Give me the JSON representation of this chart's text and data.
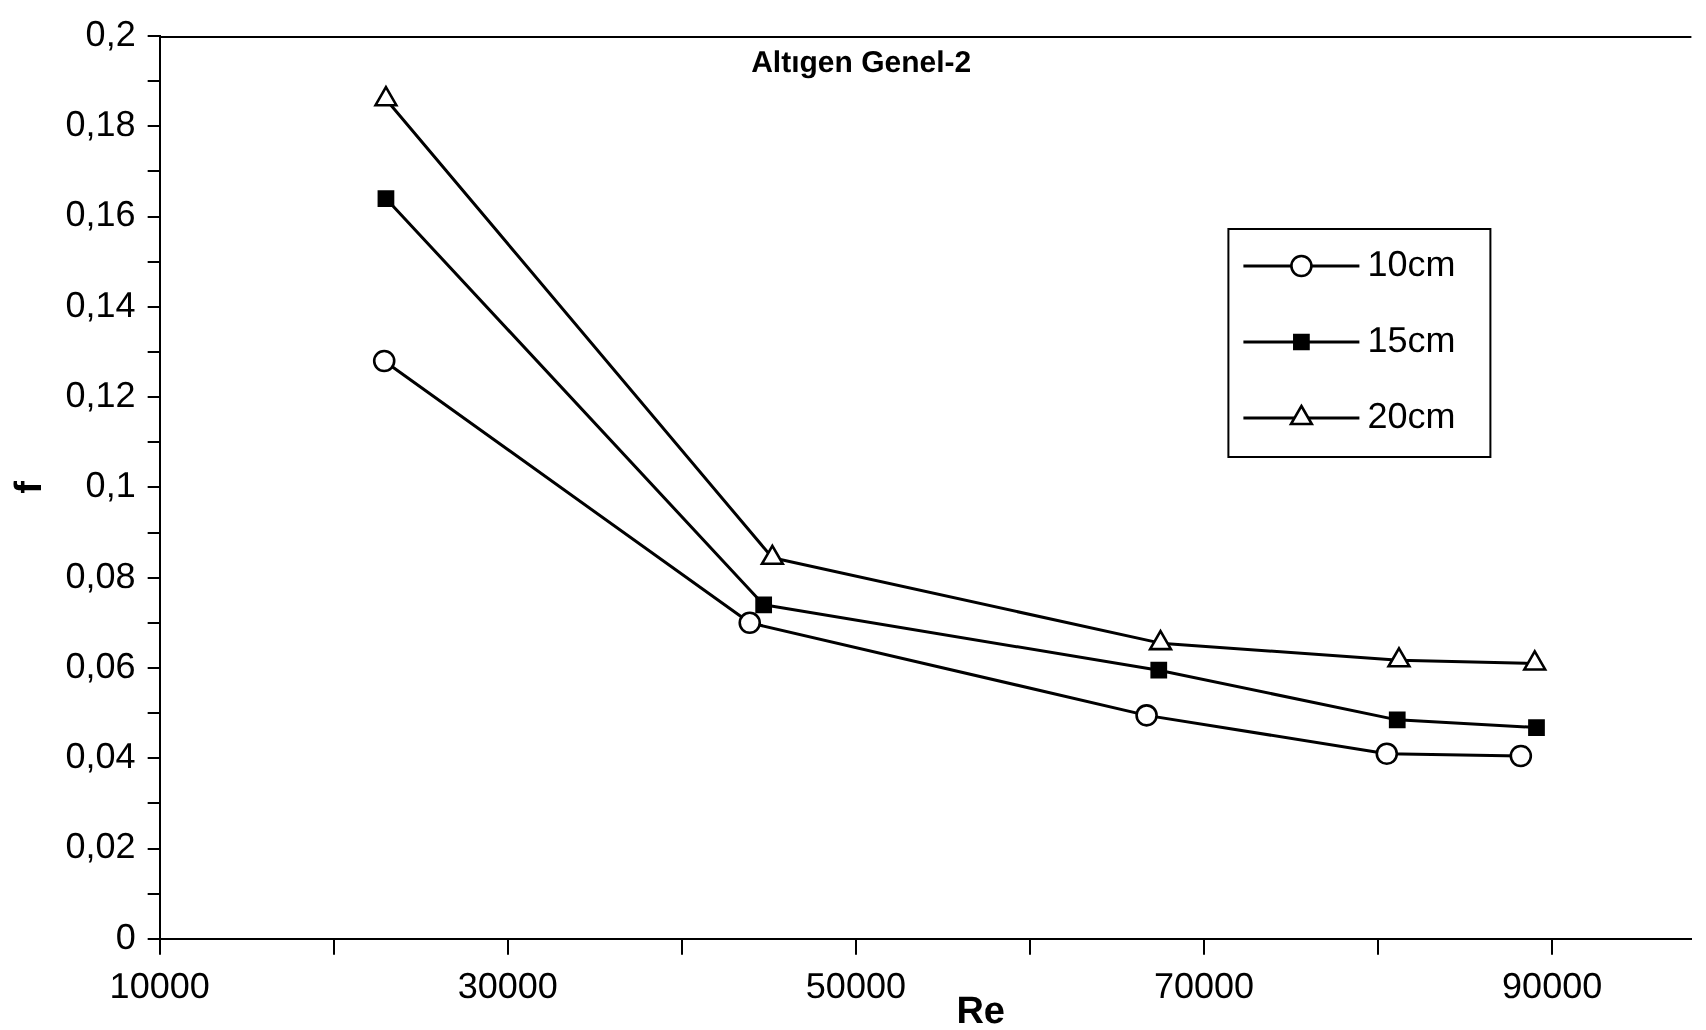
{
  "chart_data": {
    "type": "line",
    "title": "Altıgen Genel-2",
    "xlabel": "Re",
    "ylabel": "f",
    "xlim": [
      10000,
      98000
    ],
    "xticks": [
      10000,
      {
        "value": 20000,
        "label": null
      },
      30000,
      {
        "value": 40000,
        "label": null
      },
      50000,
      {
        "value": 60000,
        "label": null
      },
      70000,
      {
        "value": 80000,
        "label": null
      },
      90000
    ],
    "ylim": [
      0,
      0.2
    ],
    "yticks": [
      {
        "value": 0,
        "label": "0"
      },
      {
        "value": 0.01,
        "label": null
      },
      {
        "value": 0.02,
        "label": "0,02"
      },
      {
        "value": 0.03,
        "label": null
      },
      {
        "value": 0.04,
        "label": "0,04"
      },
      {
        "value": 0.05,
        "label": null
      },
      {
        "value": 0.06,
        "label": "0,06"
      },
      {
        "value": 0.07,
        "label": null
      },
      {
        "value": 0.08,
        "label": "0,08"
      },
      {
        "value": 0.09,
        "label": null
      },
      {
        "value": 0.1,
        "label": "0,1"
      },
      {
        "value": 0.11,
        "label": null
      },
      {
        "value": 0.12,
        "label": "0,12"
      },
      {
        "value": 0.13,
        "label": null
      },
      {
        "value": 0.14,
        "label": "0,14"
      },
      {
        "value": 0.15,
        "label": null
      },
      {
        "value": 0.16,
        "label": "0,16"
      },
      {
        "value": 0.17,
        "label": null
      },
      {
        "value": 0.18,
        "label": "0,18"
      },
      {
        "value": 0.19,
        "label": null
      },
      {
        "value": 0.2,
        "label": "0,2"
      }
    ],
    "grid": false,
    "legend": "top right",
    "line_style": "solid",
    "series": [
      {
        "name": "10cm",
        "color": "#000000",
        "marker": "circle",
        "x": [
          22900,
          43900,
          66700,
          80500,
          88200
        ],
        "values": [
          0.128,
          0.07,
          0.0495,
          0.041,
          0.0405
        ]
      },
      {
        "name": "15cm",
        "color": "#000000",
        "marker": "square",
        "x": [
          23000,
          44700,
          67400,
          81100,
          89100
        ],
        "values": [
          0.164,
          0.074,
          0.0595,
          0.0485,
          0.0468
        ]
      },
      {
        "name": "20cm",
        "color": "#000000",
        "marker": "triangle",
        "x": [
          23000,
          45200,
          67500,
          81200,
          89000
        ],
        "values": [
          0.186,
          0.0844,
          0.0655,
          0.0617,
          0.061
        ]
      }
    ]
  }
}
